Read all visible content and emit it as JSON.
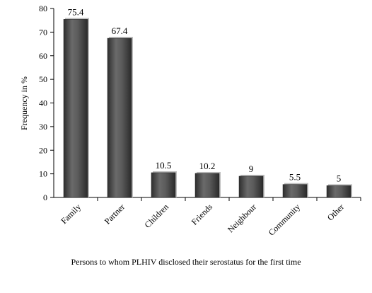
{
  "chart_data": {
    "type": "bar",
    "categories": [
      "Family",
      "Partner",
      "Children",
      "Friends",
      "Neighbour",
      "Community",
      "Other"
    ],
    "values": [
      75.4,
      67.4,
      10.5,
      10.2,
      9,
      5.5,
      5
    ],
    "data_labels": [
      "75.4",
      "67.4",
      "10.5",
      "10.2",
      "9",
      "5.5",
      "5"
    ],
    "title": "",
    "xlabel": "Persons to whom PLHIV disclosed their serostatus  for the first time",
    "ylabel": "Frequency in %",
    "ylim": [
      0,
      80
    ],
    "yticks": [
      0,
      10,
      20,
      30,
      40,
      50,
      60,
      70,
      80
    ],
    "grid": false,
    "legend": "none",
    "bar_color": "#4a4a4a"
  }
}
